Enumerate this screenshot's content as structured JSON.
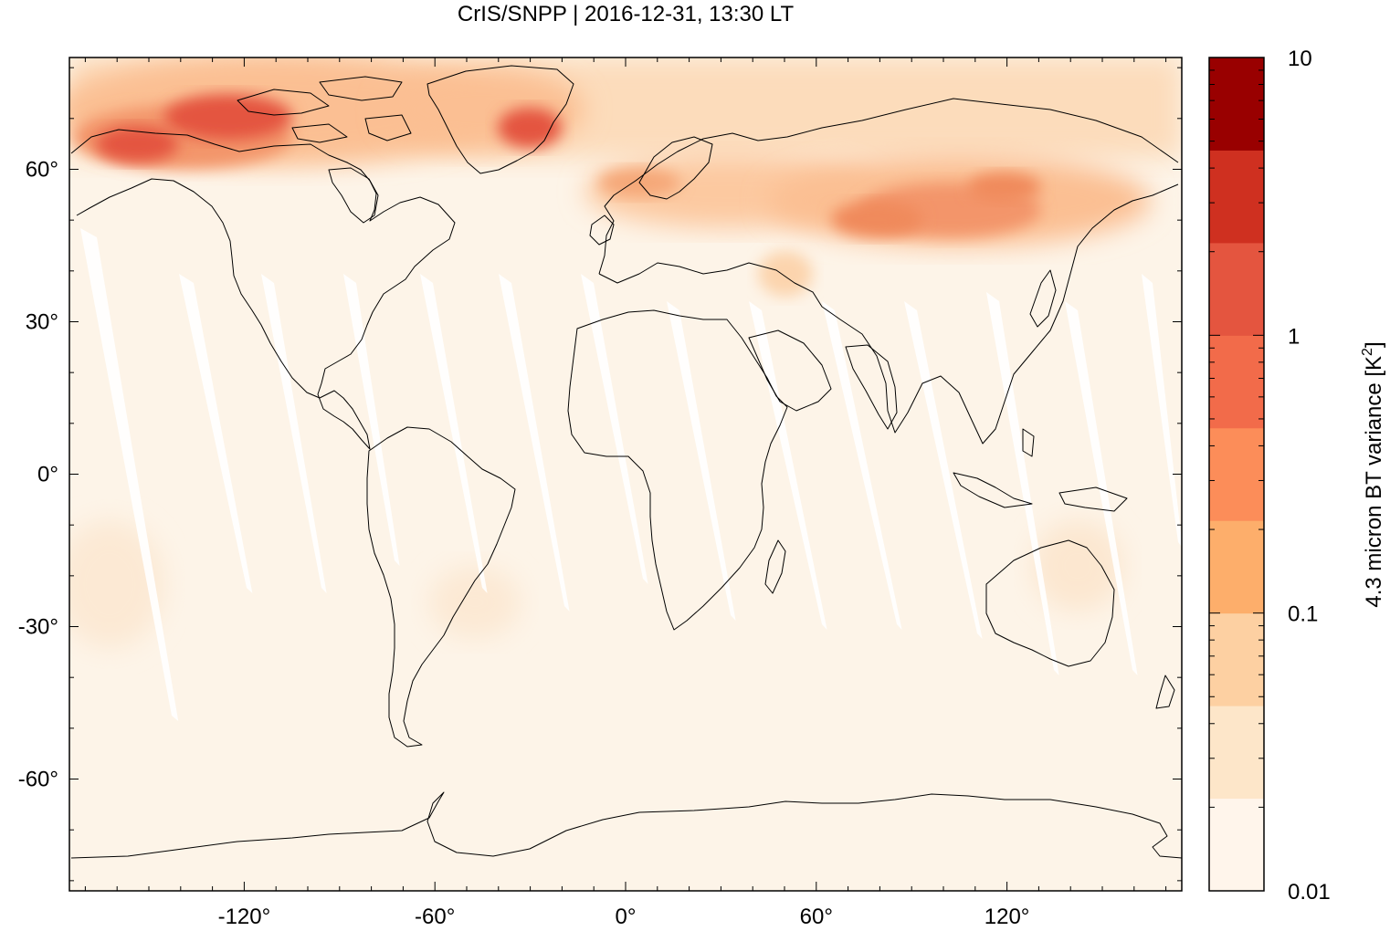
{
  "title": "CrIS/SNPP | 2016-12-31, 13:30 LT",
  "map": {
    "projection": "equirectangular",
    "lon_range": [
      -175,
      175
    ],
    "lat_range": [
      -82,
      82
    ],
    "x_ticks": [
      {
        "value": -120,
        "label": "-120°"
      },
      {
        "value": -60,
        "label": "-60°"
      },
      {
        "value": 0,
        "label": "0°"
      },
      {
        "value": 60,
        "label": "60°"
      },
      {
        "value": 120,
        "label": "120°"
      }
    ],
    "y_ticks": [
      {
        "value": 60,
        "label": "60°"
      },
      {
        "value": 30,
        "label": "30°"
      },
      {
        "value": 0,
        "label": "0°"
      },
      {
        "value": -30,
        "label": "-30°"
      },
      {
        "value": -60,
        "label": "-60°"
      }
    ],
    "background_color": "#fdf4e8",
    "gap_color": "#ffffff",
    "coastline_color": "#000000"
  },
  "colorbar": {
    "title": "4.3 micron BT variance [K",
    "title_superscript": "2",
    "title_suffix": "]",
    "scale": "log",
    "range": [
      0.01,
      10
    ],
    "tick_labels": [
      {
        "value": 10,
        "label": "10"
      },
      {
        "value": 1,
        "label": "1"
      },
      {
        "value": 0.1,
        "label": "0.1"
      },
      {
        "value": 0.01,
        "label": "0.01"
      }
    ],
    "colors": [
      "#fff5eb",
      "#fde6c9",
      "#fdd0a2",
      "#fdae6b",
      "#fc8d59",
      "#f26b4a",
      "#e4553f",
      "#cf3020",
      "#990000"
    ]
  }
}
